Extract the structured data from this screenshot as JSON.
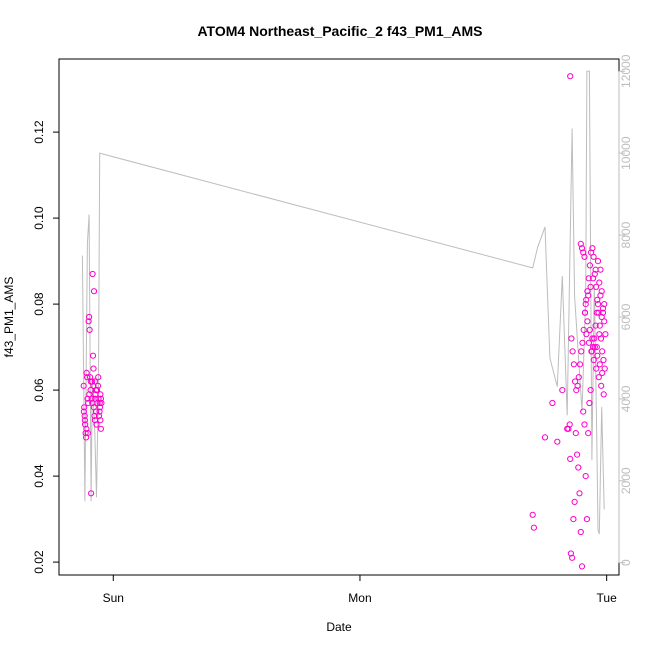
{
  "chart_data": {
    "type": "scatter",
    "title": "ATOM4 Northeast_Pacific_2 f43_PM1_AMS",
    "xlabel": "Date",
    "ylabel": "f43_PM1_AMS",
    "x_ticks": [
      {
        "label": "Sun",
        "value": 0.0
      },
      {
        "label": "Mon",
        "value": 1.0
      },
      {
        "label": "Tue",
        "value": 2.0
      }
    ],
    "x_unit": "days since Sun 00:00",
    "xlim": [
      -0.22,
      2.05
    ],
    "ylim": [
      0.017,
      0.137
    ],
    "y_ticks": [
      0.02,
      0.04,
      0.06,
      0.08,
      0.1,
      0.12
    ],
    "y2lim": [
      -300,
      12300
    ],
    "y2_ticks": [
      0,
      2000,
      4000,
      6000,
      8000,
      10000,
      12000
    ],
    "series": [
      {
        "kind": "points",
        "color": "#ff00cc",
        "x": [
          -0.12,
          -0.118,
          -0.116,
          -0.114,
          -0.112,
          -0.11,
          -0.108,
          -0.106,
          -0.104,
          -0.102,
          -0.1,
          -0.098,
          -0.096,
          -0.094,
          -0.092,
          -0.09,
          -0.088,
          -0.086,
          -0.084,
          -0.082,
          -0.08,
          -0.078,
          -0.076,
          -0.074,
          -0.072,
          -0.07,
          -0.068,
          -0.066,
          -0.064,
          -0.062,
          -0.06,
          -0.058,
          -0.056,
          -0.054,
          -0.052,
          -0.05,
          -0.048,
          -0.119,
          -0.115,
          -0.109,
          -0.103,
          -0.097,
          -0.091,
          -0.085,
          -0.079,
          -0.073,
          -0.067,
          -0.061,
          -0.055,
          -0.052,
          -0.05,
          -0.08,
          -0.075,
          -0.07,
          1.7,
          1.705,
          1.75,
          1.78,
          1.8,
          1.82,
          1.84,
          1.845,
          1.85,
          1.852,
          1.855,
          1.86,
          1.865,
          1.87,
          1.875,
          1.88,
          1.885,
          1.89,
          1.895,
          1.9,
          1.905,
          1.91,
          1.915,
          1.92,
          1.925,
          1.93,
          1.935,
          1.94,
          1.945,
          1.95,
          1.955,
          1.96,
          1.965,
          1.97,
          1.975,
          1.98,
          1.985,
          1.99,
          1.995,
          1.852,
          1.857,
          1.862,
          1.867,
          1.872,
          1.877,
          1.882,
          1.887,
          1.892,
          1.897,
          1.902,
          1.907,
          1.912,
          1.917,
          1.922,
          1.927,
          1.932,
          1.937,
          1.942,
          1.947,
          1.952,
          1.957,
          1.962,
          1.967,
          1.972,
          1.977,
          1.982,
          1.987,
          1.992,
          1.912,
          1.922,
          1.932,
          1.942,
          1.952,
          1.962,
          1.972,
          1.982,
          1.915,
          1.925,
          1.935,
          1.945,
          1.955,
          1.965,
          1.975,
          1.985,
          1.918,
          1.928,
          1.938,
          1.948,
          1.958,
          1.968,
          1.978,
          1.988,
          1.895,
          1.9,
          1.905,
          1.91,
          1.96,
          1.97,
          1.98,
          1.99
        ],
        "y": [
          0.061,
          0.056,
          0.054,
          0.052,
          0.05,
          0.049,
          0.064,
          0.063,
          0.058,
          0.057,
          0.076,
          0.077,
          0.074,
          0.063,
          0.06,
          0.036,
          0.058,
          0.062,
          0.087,
          0.068,
          0.065,
          0.083,
          0.054,
          0.053,
          0.059,
          0.055,
          0.052,
          0.06,
          0.057,
          0.061,
          0.058,
          0.054,
          0.055,
          0.056,
          0.053,
          0.051,
          0.057,
          0.055,
          0.053,
          0.051,
          0.05,
          0.059,
          0.062,
          0.057,
          0.056,
          0.058,
          0.06,
          0.063,
          0.057,
          0.059,
          0.058,
          0.061,
          0.062,
          0.06,
          0.031,
          0.028,
          0.049,
          0.057,
          0.048,
          0.06,
          0.051,
          0.051,
          0.052,
          0.044,
          0.022,
          0.021,
          0.03,
          0.034,
          0.05,
          0.045,
          0.042,
          0.036,
          0.027,
          0.019,
          0.055,
          0.052,
          0.04,
          0.03,
          0.05,
          0.057,
          0.06,
          0.069,
          0.07,
          0.072,
          0.075,
          0.078,
          0.08,
          0.085,
          0.088,
          0.083,
          0.079,
          0.076,
          0.073,
          0.133,
          0.072,
          0.069,
          0.066,
          0.062,
          0.06,
          0.061,
          0.063,
          0.066,
          0.069,
          0.071,
          0.074,
          0.078,
          0.081,
          0.083,
          0.086,
          0.089,
          0.092,
          0.093,
          0.091,
          0.087,
          0.084,
          0.081,
          0.078,
          0.075,
          0.072,
          0.069,
          0.067,
          0.065,
          0.078,
          0.076,
          0.074,
          0.072,
          0.07,
          0.068,
          0.066,
          0.064,
          0.08,
          0.082,
          0.084,
          0.086,
          0.088,
          0.09,
          0.082,
          0.078,
          0.073,
          0.071,
          0.069,
          0.067,
          0.065,
          0.063,
          0.061,
          0.059,
          0.094,
          0.093,
          0.092,
          0.091,
          0.07,
          0.073,
          0.077,
          0.08
        ]
      },
      {
        "kind": "line",
        "axis": "right",
        "color": "#bdbdbd",
        "x": [
          -0.125,
          -0.115,
          -0.105,
          -0.098,
          -0.09,
          -0.085,
          -0.075,
          -0.068,
          -0.06,
          -0.055,
          1.7,
          1.72,
          1.75,
          1.77,
          1.8,
          1.82,
          1.84,
          1.86,
          1.87,
          1.9,
          1.915,
          1.92,
          1.93,
          1.94,
          1.95,
          1.96,
          1.965,
          1.97,
          1.98,
          1.99
        ],
        "y": [
          7500,
          1500,
          7800,
          8500,
          1500,
          4500,
          3200,
          1600,
          4500,
          10000,
          7200,
          7700,
          8200,
          5000,
          4300,
          7000,
          3600,
          10600,
          6500,
          3700,
          6500,
          12000,
          12000,
          2500,
          6800,
          3000,
          800,
          700,
          3800,
          1300
        ]
      }
    ]
  }
}
